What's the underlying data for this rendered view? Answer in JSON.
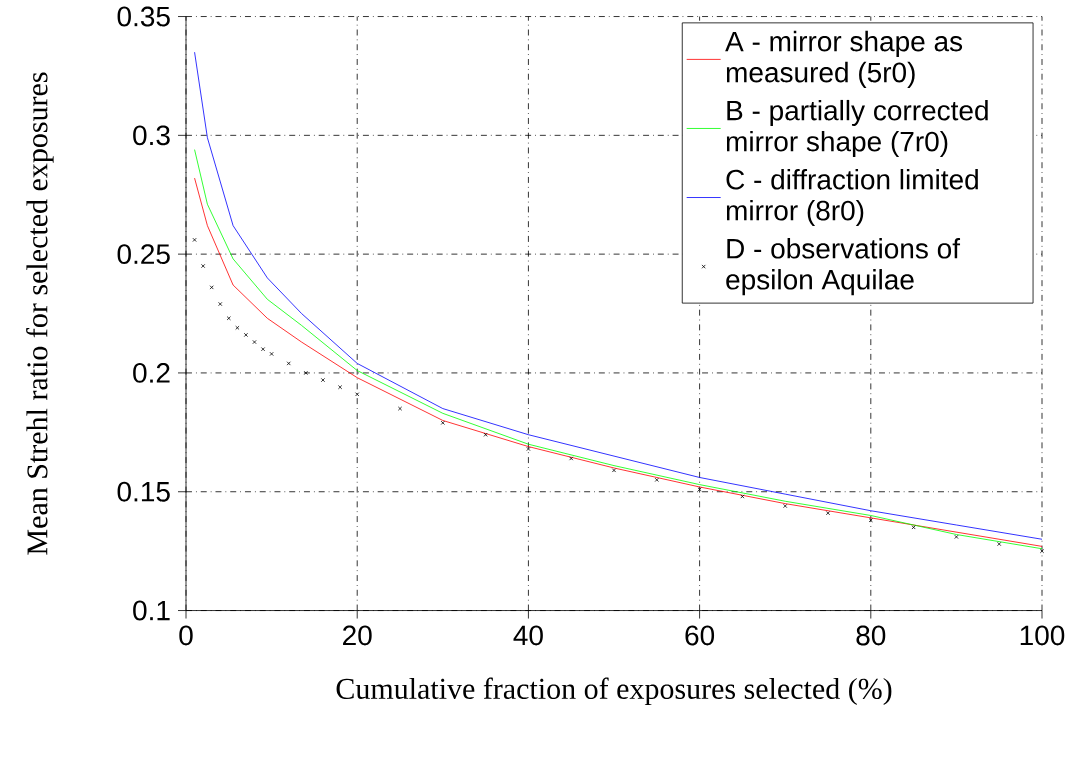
{
  "chart_data": {
    "type": "line",
    "xlabel": "Cumulative fraction of exposures selected (%)",
    "ylabel": "Mean Strehl ratio for selected exposures",
    "xlim": [
      0,
      100
    ],
    "ylim": [
      0.1,
      0.35
    ],
    "xticks": [
      0,
      20,
      40,
      60,
      80,
      100
    ],
    "yticks": [
      0.1,
      0.15,
      0.2,
      0.25,
      0.3,
      0.35
    ],
    "grid": true,
    "legend": "top right",
    "series": [
      {
        "name": "A - mirror shape as measured (5r0)",
        "color": "#ff0000",
        "x": [
          1,
          2.5,
          5.5,
          9.5,
          13.5,
          20,
          30,
          40,
          50,
          60,
          70,
          80,
          90,
          100
        ],
        "values": [
          0.282,
          0.262,
          0.237,
          0.223,
          0.213,
          0.198,
          0.18,
          0.169,
          0.16,
          0.152,
          0.145,
          0.139,
          0.133,
          0.127
        ]
      },
      {
        "name": "B - partially corrected mirror shape (7r0)",
        "color": "#00ff00",
        "x": [
          1,
          2.5,
          5.5,
          9.5,
          13.5,
          20,
          30,
          40,
          50,
          60,
          70,
          80,
          90,
          100
        ],
        "values": [
          0.294,
          0.271,
          0.248,
          0.231,
          0.22,
          0.201,
          0.183,
          0.17,
          0.161,
          0.153,
          0.146,
          0.14,
          0.132,
          0.126
        ]
      },
      {
        "name": "C - diffraction limited mirror (8r0)",
        "color": "#0000ff",
        "x": [
          1,
          2.5,
          5.5,
          9.5,
          13.5,
          20,
          30,
          40,
          50,
          60,
          70,
          80,
          90,
          100
        ],
        "values": [
          0.335,
          0.299,
          0.262,
          0.24,
          0.225,
          0.204,
          0.185,
          0.174,
          0.165,
          0.156,
          0.149,
          0.142,
          0.136,
          0.13
        ]
      },
      {
        "name": "D - observations of epsilon Aquilae",
        "color": "#000000",
        "type": "scatter",
        "marker": "cross",
        "x": [
          1,
          2,
          3,
          4,
          5,
          6,
          7,
          8,
          9,
          10,
          12,
          14,
          16,
          18,
          20,
          25,
          30,
          35,
          40,
          45,
          50,
          55,
          60,
          65,
          70,
          75,
          80,
          85,
          90,
          95,
          100
        ],
        "values": [
          0.256,
          0.245,
          0.236,
          0.229,
          0.223,
          0.219,
          0.216,
          0.213,
          0.21,
          0.208,
          0.204,
          0.2,
          0.197,
          0.194,
          0.191,
          0.185,
          0.179,
          0.174,
          0.168,
          0.164,
          0.159,
          0.155,
          0.151,
          0.148,
          0.144,
          0.141,
          0.138,
          0.135,
          0.131,
          0.128,
          0.125
        ]
      }
    ]
  }
}
